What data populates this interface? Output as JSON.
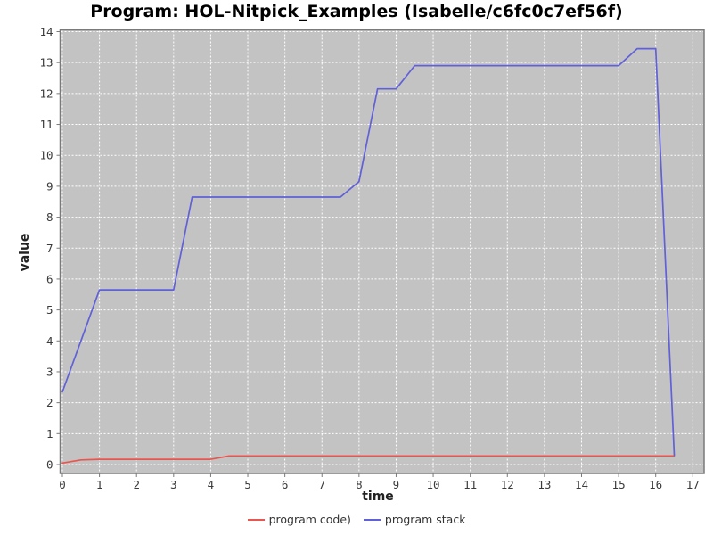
{
  "chart_data": {
    "type": "line",
    "title": "Program: HOL-Nitpick_Examples (Isabelle/c6fc0c7ef56f)",
    "xlabel": "time",
    "ylabel": "value",
    "xlim": [
      0,
      17
    ],
    "ylim": [
      0,
      14
    ],
    "x_ticks": [
      0,
      1,
      2,
      3,
      4,
      5,
      6,
      7,
      8,
      9,
      10,
      11,
      12,
      13,
      14,
      15,
      16,
      17
    ],
    "y_ticks": [
      0,
      1,
      2,
      3,
      4,
      5,
      6,
      7,
      8,
      9,
      10,
      11,
      12,
      13,
      14
    ],
    "grid": true,
    "grid_style": "white dashed lines on gray plot background",
    "plot_background": "#c3c3c3",
    "plot_border_color": "#7a7a7a",
    "grid_color": "#ffffff",
    "tick_label_color": "#3b3b3b",
    "legend_position": "bottom-center",
    "series": [
      {
        "name": "program code)",
        "color": "#e9564f",
        "points": [
          [
            0,
            0.05
          ],
          [
            0.5,
            0.15
          ],
          [
            1,
            0.17
          ],
          [
            4,
            0.17
          ],
          [
            4.5,
            0.28
          ],
          [
            16.5,
            0.28
          ]
        ]
      },
      {
        "name": "program stack",
        "color": "#6060d8",
        "points": [
          [
            0,
            2.35
          ],
          [
            1,
            5.65
          ],
          [
            2,
            5.65
          ],
          [
            3,
            5.65
          ],
          [
            3.5,
            8.65
          ],
          [
            7,
            8.65
          ],
          [
            7.5,
            8.65
          ],
          [
            8,
            9.15
          ],
          [
            8.5,
            12.15
          ],
          [
            9,
            12.15
          ],
          [
            9.5,
            12.9
          ],
          [
            15,
            12.9
          ],
          [
            15.5,
            13.45
          ],
          [
            16,
            13.45
          ],
          [
            16.5,
            0.3
          ]
        ]
      }
    ]
  }
}
